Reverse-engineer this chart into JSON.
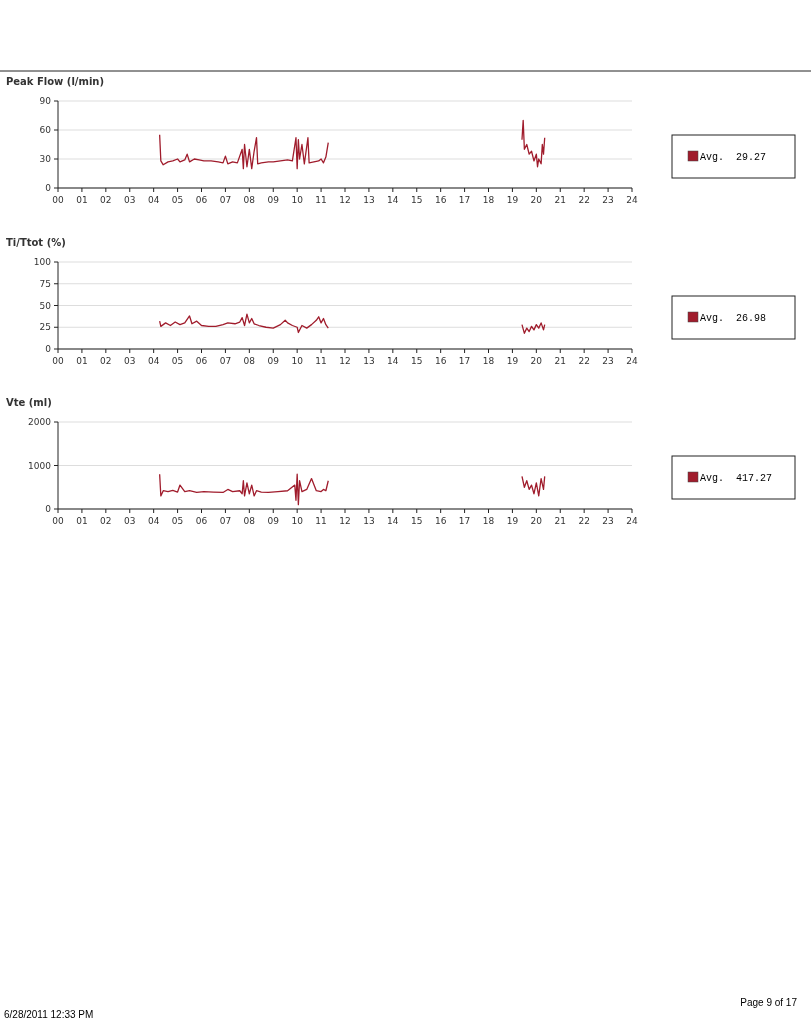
{
  "chart_data": [
    {
      "type": "line",
      "title": "Peak Flow (l/min)",
      "legend": "right",
      "grid": "y",
      "xlim": [
        0,
        24
      ],
      "ylim": [
        0,
        90
      ],
      "yticks": [
        0,
        30,
        60,
        90
      ],
      "xticks": [
        {
          "value": 0,
          "label": "00"
        },
        {
          "value": 1,
          "label": "01"
        },
        {
          "value": 2,
          "label": "02"
        },
        {
          "value": 3,
          "label": "03"
        },
        {
          "value": 4,
          "label": "04"
        },
        {
          "value": 5,
          "label": "05"
        },
        {
          "value": 6,
          "label": "06"
        },
        {
          "value": 7,
          "label": "07"
        },
        {
          "value": 8,
          "label": "08"
        },
        {
          "value": 9,
          "label": "09"
        },
        10,
        11,
        12,
        13,
        14,
        15,
        16,
        17,
        18,
        19,
        20,
        21,
        22,
        23,
        24
      ],
      "series": [
        {
          "name": "Avg.  29.27",
          "color": "#a01c2c",
          "x": [
            4.25,
            4.3,
            4.4,
            4.6,
            4.8,
            5.0,
            5.1,
            5.3,
            5.4,
            5.5,
            5.7,
            5.9,
            6.1,
            6.4,
            6.7,
            6.9,
            7.0,
            7.1,
            7.3,
            7.5,
            7.7,
            7.75,
            7.8,
            7.9,
            8.0,
            8.1,
            8.2,
            8.3,
            8.35,
            8.5,
            8.8,
            9.0,
            9.3,
            9.6,
            9.8,
            9.95,
            10.0,
            10.05,
            10.1,
            10.2,
            10.3,
            10.45,
            10.5,
            10.7,
            10.9,
            11.0,
            11.1,
            11.2,
            11.3,
            15,
            19.4,
            19.45,
            19.5,
            19.6,
            19.7,
            19.8,
            19.9,
            20.0,
            20.05,
            20.1,
            20.2,
            20.25,
            20.3,
            20.35
          ],
          "values": [
            55,
            28,
            24,
            27,
            28,
            30,
            27,
            29,
            35,
            27,
            30,
            29,
            28,
            28,
            27,
            26,
            33,
            25,
            27,
            26,
            40,
            20,
            45,
            22,
            40,
            20,
            38,
            52,
            25,
            26,
            27,
            27,
            28,
            29,
            28,
            52,
            20,
            50,
            30,
            45,
            25,
            52,
            26,
            27,
            28,
            30,
            26,
            32,
            47,
            null,
            50,
            70,
            40,
            45,
            35,
            38,
            28,
            35,
            22,
            30,
            25,
            45,
            35,
            52
          ]
        }
      ]
    },
    {
      "type": "line",
      "title": "Ti/Ttot (%)",
      "legend": "right",
      "grid": "y",
      "xlim": [
        0,
        24
      ],
      "ylim": [
        0,
        100
      ],
      "yticks": [
        0,
        25,
        50,
        75,
        100
      ],
      "xticks": [
        {
          "value": 0,
          "label": "00"
        },
        {
          "value": 1,
          "label": "01"
        },
        {
          "value": 2,
          "label": "02"
        },
        {
          "value": 3,
          "label": "03"
        },
        {
          "value": 4,
          "label": "04"
        },
        {
          "value": 5,
          "label": "05"
        },
        {
          "value": 6,
          "label": "06"
        },
        {
          "value": 7,
          "label": "07"
        },
        {
          "value": 8,
          "label": "08"
        },
        {
          "value": 9,
          "label": "09"
        },
        10,
        11,
        12,
        13,
        14,
        15,
        16,
        17,
        18,
        19,
        20,
        21,
        22,
        23,
        24
      ],
      "series": [
        {
          "name": "Avg.  26.98",
          "color": "#a01c2c",
          "x": [
            4.25,
            4.3,
            4.5,
            4.7,
            4.9,
            5.1,
            5.3,
            5.5,
            5.6,
            5.8,
            6.0,
            6.3,
            6.6,
            6.9,
            7.1,
            7.4,
            7.6,
            7.7,
            7.8,
            7.9,
            8.0,
            8.1,
            8.2,
            8.4,
            8.7,
            9.0,
            9.3,
            9.5,
            9.6,
            9.8,
            10.0,
            10.05,
            10.2,
            10.4,
            10.6,
            10.8,
            10.9,
            11.0,
            11.1,
            11.2,
            11.3,
            15,
            19.4,
            19.5,
            19.6,
            19.7,
            19.8,
            19.9,
            20.0,
            20.1,
            20.2,
            20.3,
            20.35
          ],
          "values": [
            32,
            26,
            30,
            27,
            31,
            28,
            30,
            38,
            29,
            32,
            27,
            26,
            26,
            28,
            30,
            29,
            31,
            36,
            27,
            40,
            30,
            35,
            29,
            27,
            25,
            24,
            28,
            33,
            30,
            27,
            25,
            19,
            27,
            24,
            28,
            33,
            37,
            30,
            35,
            28,
            24,
            null,
            28,
            18,
            24,
            20,
            26,
            22,
            28,
            24,
            30,
            22,
            28
          ]
        }
      ]
    },
    {
      "type": "line",
      "title": "Vte (ml)",
      "legend": "right",
      "grid": "y",
      "xlim": [
        0,
        24
      ],
      "ylim": [
        0,
        2000
      ],
      "yticks": [
        0,
        1000,
        2000
      ],
      "xticks": [
        {
          "value": 0,
          "label": "00"
        },
        {
          "value": 1,
          "label": "01"
        },
        {
          "value": 2,
          "label": "02"
        },
        {
          "value": 3,
          "label": "03"
        },
        {
          "value": 4,
          "label": "04"
        },
        {
          "value": 5,
          "label": "05"
        },
        {
          "value": 6,
          "label": "06"
        },
        {
          "value": 7,
          "label": "07"
        },
        {
          "value": 8,
          "label": "08"
        },
        {
          "value": 9,
          "label": "09"
        },
        10,
        11,
        12,
        13,
        14,
        15,
        16,
        17,
        18,
        19,
        20,
        21,
        22,
        23,
        24
      ],
      "annotations": [
        "6/28/2011 12:33 PM",
        "Page 9 of 17"
      ],
      "series": [
        {
          "name": "Avg.  417.27",
          "color": "#a01c2c",
          "x": [
            4.25,
            4.3,
            4.4,
            4.6,
            4.8,
            5.0,
            5.1,
            5.3,
            5.5,
            5.8,
            6.1,
            6.5,
            6.9,
            7.1,
            7.3,
            7.6,
            7.7,
            7.75,
            7.8,
            7.9,
            8.0,
            8.1,
            8.2,
            8.3,
            8.5,
            8.8,
            9.2,
            9.6,
            9.9,
            9.95,
            10.0,
            10.05,
            10.1,
            10.2,
            10.4,
            10.6,
            10.8,
            11.0,
            11.1,
            11.2,
            11.3,
            15,
            19.4,
            19.5,
            19.6,
            19.7,
            19.8,
            19.9,
            20.0,
            20.1,
            20.2,
            20.3,
            20.35
          ],
          "values": [
            800,
            300,
            420,
            400,
            430,
            390,
            550,
            400,
            420,
            380,
            400,
            390,
            380,
            450,
            400,
            420,
            350,
            650,
            300,
            600,
            350,
            550,
            300,
            420,
            390,
            380,
            400,
            420,
            550,
            200,
            800,
            100,
            650,
            400,
            450,
            700,
            420,
            400,
            450,
            420,
            650,
            null,
            750,
            500,
            650,
            450,
            550,
            350,
            600,
            300,
            700,
            450,
            750
          ]
        }
      ]
    }
  ]
}
